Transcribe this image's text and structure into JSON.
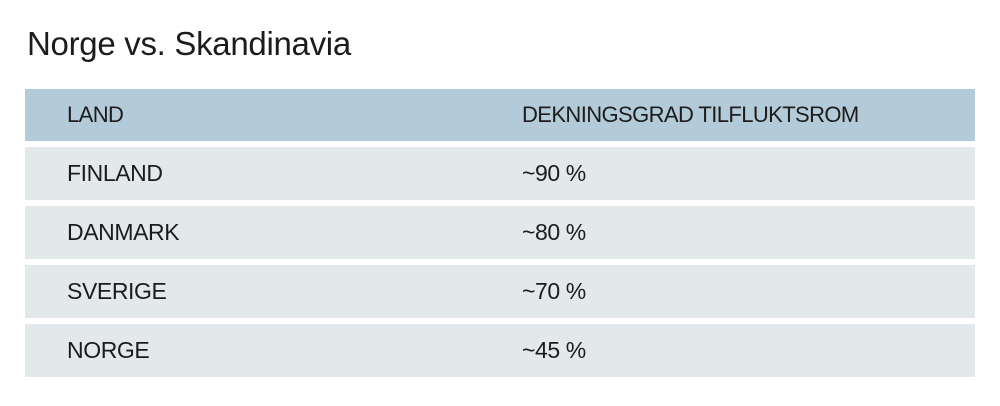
{
  "title": "Norge vs. Skandinavia",
  "table": {
    "headers": [
      "LAND",
      "DEKNINGSGRAD TILFLUKTSROM"
    ],
    "rows": [
      [
        "FINLAND",
        "~90 %"
      ],
      [
        "DANMARK",
        "~80 %"
      ],
      [
        "SVERIGE",
        "~70 %"
      ],
      [
        "NORGE",
        "~45 %"
      ]
    ]
  },
  "colors": {
    "header_bg": "#b3cbd8",
    "row_bg": "#e3e8eb",
    "text": "#1c1c1c"
  }
}
